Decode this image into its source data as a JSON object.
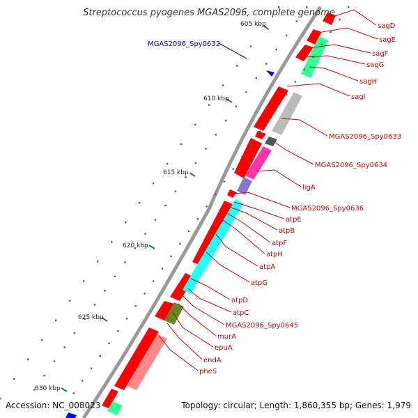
{
  "title": "Streptococcus pyogenes MGAS2096, complete genome",
  "footer": {
    "accession": "Accession: NC_008023",
    "topology": "Topology: circular; Length: 1,860,355 bp; Genes: 1,979"
  },
  "colors": {
    "forward_label": "#cc0000",
    "reverse_label": "#0000cc",
    "backbone": "#888888",
    "gc_tick": "#2a7a2a"
  },
  "kbp_ticks": [
    "605 kbp",
    "610 kbp",
    "615 kbp",
    "620 kbp",
    "625 kbp",
    "630 kbp"
  ],
  "gene_labels": [
    {
      "name": "sagD",
      "strand": "forward"
    },
    {
      "name": "sagE",
      "strand": "forward"
    },
    {
      "name": "sagF",
      "strand": "forward"
    },
    {
      "name": "sagG",
      "strand": "forward"
    },
    {
      "name": "sagH",
      "strand": "forward"
    },
    {
      "name": "sagI",
      "strand": "forward"
    },
    {
      "name": "MGAS2096_Spy0633",
      "strand": "forward"
    },
    {
      "name": "MGAS2096_Spy0634",
      "strand": "forward"
    },
    {
      "name": "ligA",
      "strand": "forward"
    },
    {
      "name": "MGAS2096_Spy0636",
      "strand": "forward"
    },
    {
      "name": "atpE",
      "strand": "forward"
    },
    {
      "name": "atpB",
      "strand": "forward"
    },
    {
      "name": "atpF",
      "strand": "forward"
    },
    {
      "name": "atpH",
      "strand": "forward"
    },
    {
      "name": "atpA",
      "strand": "forward"
    },
    {
      "name": "atpG",
      "strand": "forward"
    },
    {
      "name": "atpD",
      "strand": "forward"
    },
    {
      "name": "atpC",
      "strand": "forward"
    },
    {
      "name": "MGAS2096_Spy0645",
      "strand": "forward"
    },
    {
      "name": "murA",
      "strand": "forward"
    },
    {
      "name": "epuA",
      "strand": "forward"
    },
    {
      "name": "endA",
      "strand": "forward"
    },
    {
      "name": "pheS",
      "strand": "forward"
    },
    {
      "name": "MGAS2096_Spy0632",
      "strand": "reverse"
    }
  ],
  "features": [
    {
      "id": "f-sagD",
      "color": "#ff0000",
      "arrow": true
    },
    {
      "id": "f-sagE",
      "color": "#ff0000",
      "arrow": true
    },
    {
      "id": "f-sagF",
      "color": "#ff0000",
      "arrow": true
    },
    {
      "id": "f-sagG",
      "color": "#ff0000",
      "arrow": true
    },
    {
      "id": "f-sagH",
      "color": "#ff0000",
      "arrow": true
    },
    {
      "id": "f-sagI",
      "color": "#ff0000",
      "arrow": true
    },
    {
      "id": "f-spy0633",
      "color": "#ff0000",
      "arrow": true
    },
    {
      "id": "f-spy0634",
      "color": "#ff0000",
      "arrow": true
    },
    {
      "id": "f-ligA",
      "color": "#ff0000",
      "arrow": true
    },
    {
      "id": "f-spy0636",
      "color": "#ff0000",
      "arrow": true
    },
    {
      "id": "f-atp",
      "color": "#ff0000",
      "arrow": true
    },
    {
      "id": "f-murA",
      "color": "#ff0000",
      "arrow": true
    },
    {
      "id": "f-epuA",
      "color": "#ff0000",
      "arrow": true
    },
    {
      "id": "f-pheS",
      "color": "#ff0000",
      "arrow": true
    },
    {
      "id": "cog-sag",
      "color": "#33ff99",
      "arrow": false
    },
    {
      "id": "cog-grey1",
      "color": "#bbbbbb",
      "arrow": false
    },
    {
      "id": "cog-dark",
      "color": "#555555",
      "arrow": false
    },
    {
      "id": "cog-magenta",
      "color": "#ff33aa",
      "arrow": false
    },
    {
      "id": "cog-violet",
      "color": "#8877cc",
      "arrow": false
    },
    {
      "id": "cog-cyan",
      "color": "#22ffff",
      "arrow": false
    },
    {
      "id": "cog-olive",
      "color": "#668822",
      "arrow": false
    },
    {
      "id": "cog-salmon",
      "color": "#ff8888",
      "arrow": false
    },
    {
      "id": "cog-blue",
      "color": "#0000ff",
      "arrow": false
    }
  ]
}
